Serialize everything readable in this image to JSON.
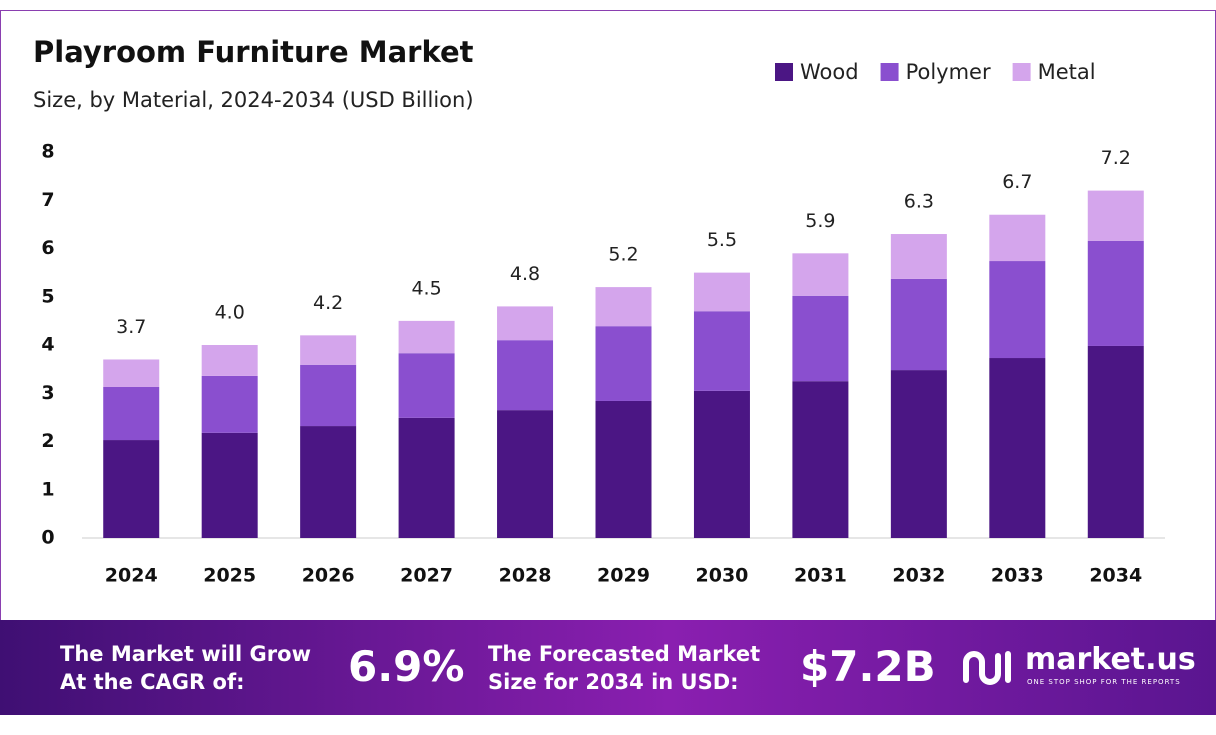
{
  "chart_data": {
    "type": "stacked-bar",
    "title": "Playroom Furniture Market",
    "subtitle": "Size, by Material, 2024-2034 (USD Billion)",
    "categories": [
      "2024",
      "2025",
      "2026",
      "2027",
      "2028",
      "2029",
      "2030",
      "2031",
      "2032",
      "2033",
      "2034"
    ],
    "series": [
      {
        "name": "Wood",
        "color": "#4b1684",
        "values": [
          2.03,
          2.18,
          2.32,
          2.49,
          2.65,
          2.84,
          3.05,
          3.25,
          3.48,
          3.73,
          3.98
        ]
      },
      {
        "name": "Polymer",
        "color": "#8a4fcf",
        "values": [
          1.1,
          1.18,
          1.27,
          1.34,
          1.45,
          1.55,
          1.65,
          1.77,
          1.89,
          2.01,
          2.18
        ]
      },
      {
        "name": "Metal",
        "color": "#d4a5ec",
        "values": [
          0.57,
          0.64,
          0.61,
          0.67,
          0.7,
          0.81,
          0.8,
          0.88,
          0.93,
          0.96,
          1.04
        ]
      }
    ],
    "totals": [
      3.7,
      4.0,
      4.2,
      4.5,
      4.8,
      5.2,
      5.5,
      5.9,
      6.3,
      6.7,
      7.2
    ],
    "totals_labels": [
      "3.7",
      "4.0",
      "4.2",
      "4.5",
      "4.8",
      "5.2",
      "5.5",
      "5.9",
      "6.3",
      "6.7",
      "7.2"
    ],
    "ylim": [
      0,
      8
    ],
    "yticks": [
      0,
      1,
      2,
      3,
      4,
      5,
      6,
      7,
      8
    ],
    "grid": false,
    "legend": "top-right"
  },
  "footer": {
    "cagr_text": [
      "The Market will Grow",
      "At the CAGR of:"
    ],
    "cagr_value": "6.9%",
    "forecast_text": [
      "The Forecasted Market",
      "Size for 2034 in USD:"
    ],
    "forecast_value": "$7.2B",
    "brand": "market.us",
    "tagline": "ONE STOP SHOP FOR THE REPORTS"
  }
}
